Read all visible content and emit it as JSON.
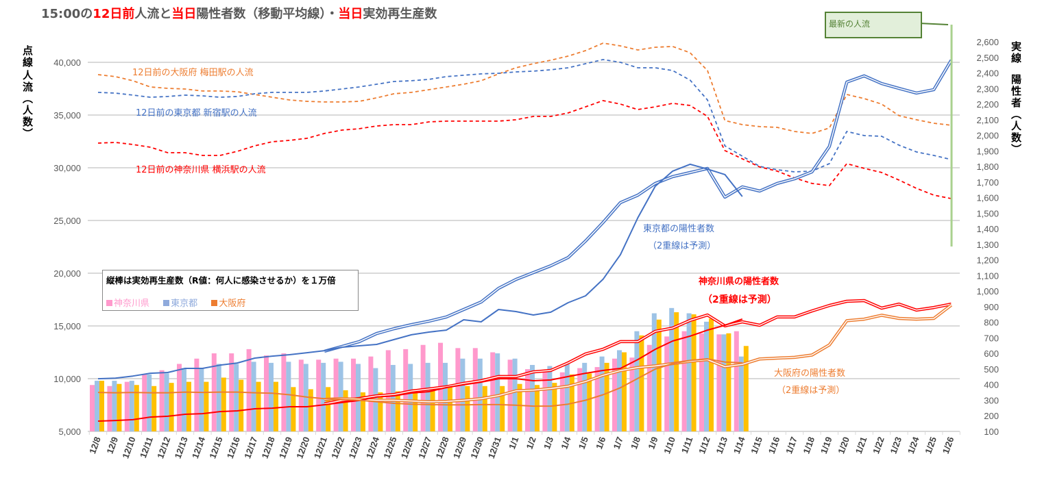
{
  "title": {
    "segments": [
      {
        "text": "15:00の",
        "red": false
      },
      {
        "text": "12日前",
        "red": true
      },
      {
        "text": "人流と",
        "red": false
      },
      {
        "text": "当日",
        "red": true
      },
      {
        "text": "陽性者数（移動平均線）・",
        "red": false
      },
      {
        "text": "当日",
        "red": true
      },
      {
        "text": "実効再生産数",
        "red": false
      }
    ]
  },
  "left_axis_title": {
    "line1": "点線",
    "line2": "人流（人数）"
  },
  "right_axis_title": {
    "line1": "実線",
    "line2": "陽性者（人数）"
  },
  "legend": {
    "title": "縦棒は実効再生産数（R値：何人に感染させるか）を１万倍",
    "items": [
      {
        "label": "神奈川県",
        "color": "#FF99CC"
      },
      {
        "label": "東京都",
        "color": "#9DC3E6"
      },
      {
        "label": "大阪府",
        "color": "#ED7D31"
      }
    ]
  },
  "latest_box": {
    "label": "最新の人流"
  },
  "annotations": {
    "umeda": "12日前の大阪府 梅田駅の人流",
    "shinjuku": "12日前の東京都 新宿駅の人流",
    "yokohama": "12日前の神奈川県 横浜駅の人流",
    "tokyo_pos": "東京都の陽性者数",
    "tokyo_note": "（2重線は予測）",
    "kanagawa_pos": "神奈川県の陽性者数",
    "kanagawa_note": "（2重線は予測）",
    "osaka_pos": "大阪府の陽性者数",
    "osaka_note": "（2重線は予測）"
  },
  "colors": {
    "tokyo": "#4472C4",
    "kanagawa": "#FF0000",
    "osaka": "#ED7D31",
    "bar_kanagawa": "#FF99CC",
    "bar_tokyo": "#9DC3E6",
    "bar_osaka": "#FFC000",
    "latest_line": "#A9D18E",
    "grid": "#D9D9D9"
  },
  "chart_data": {
    "type": "bar+line",
    "categories": [
      "12/8",
      "12/9",
      "12/10",
      "12/11",
      "12/12",
      "12/13",
      "12/14",
      "12/15",
      "12/16",
      "12/17",
      "12/18",
      "12/19",
      "12/20",
      "12/21",
      "12/22",
      "12/23",
      "12/24",
      "12/25",
      "12/26",
      "12/27",
      "12/28",
      "12/29",
      "12/30",
      "12/31",
      "1/1",
      "1/2",
      "1/3",
      "1/4",
      "1/5",
      "1/6",
      "1/7",
      "1/8",
      "1/9",
      "1/10",
      "1/11",
      "1/12",
      "1/13",
      "1/14",
      "1/15",
      "1/16",
      "1/17",
      "1/18",
      "1/19",
      "1/20",
      "1/21",
      "1/22",
      "1/23",
      "1/24",
      "1/25",
      "1/26"
    ],
    "left_axis": {
      "min": 5000,
      "max": 42500,
      "ticks": [
        "5,000",
        "10,000",
        "15,000",
        "20,000",
        "25,000",
        "30,000",
        "35,000",
        "40,000"
      ],
      "tick_values": [
        5000,
        10000,
        15000,
        20000,
        25000,
        30000,
        35000,
        40000
      ]
    },
    "right_axis": {
      "min": 100,
      "max": 2600,
      "ticks": [
        "100",
        "200",
        "300",
        "400",
        "500",
        "600",
        "700",
        "800",
        "900",
        "1,000",
        "1,100",
        "1,200",
        "1,300",
        "1,400",
        "1,500",
        "1,600",
        "1,700",
        "1,800",
        "1,900",
        "2,000",
        "2,100",
        "2,200",
        "2,300",
        "2,400",
        "2,500",
        "2,600"
      ],
      "tick_values": [
        100,
        200,
        300,
        400,
        500,
        600,
        700,
        800,
        900,
        1000,
        1100,
        1200,
        1300,
        1400,
        1500,
        1600,
        1700,
        1800,
        1900,
        2000,
        2100,
        2200,
        2300,
        2400,
        2500,
        2600
      ]
    },
    "bars_left_axis": [
      {
        "name": "神奈川県",
        "color_key": "bar_kanagawa",
        "values": [
          9400,
          9300,
          9700,
          10400,
          10800,
          11400,
          11900,
          12400,
          12400,
          12800,
          12200,
          12400,
          11800,
          11800,
          11900,
          11900,
          12100,
          12700,
          12800,
          13200,
          13400,
          12900,
          12900,
          12500,
          11800,
          10900,
          10800,
          10600,
          11000,
          11100,
          11900,
          12000,
          13200,
          14000,
          14500,
          14300,
          14200,
          14500
        ]
      },
      {
        "name": "東京都",
        "color_key": "bar_tokyo",
        "values": [
          9800,
          9800,
          9800,
          10400,
          10500,
          11000,
          11000,
          11400,
          11400,
          11600,
          11500,
          11600,
          11400,
          11500,
          11600,
          11400,
          11000,
          11300,
          11400,
          11500,
          11500,
          11900,
          11900,
          12400,
          11900,
          11300,
          11200,
          11400,
          11500,
          12100,
          12700,
          14500,
          16200,
          16700,
          16200,
          15400,
          14200,
          12100
        ]
      },
      {
        "name": "大阪府",
        "color_key": "bar_osaka",
        "values": [
          9800,
          9500,
          9400,
          9300,
          9600,
          9700,
          9700,
          10100,
          9900,
          9700,
          9700,
          9200,
          9000,
          9200,
          8900,
          8700,
          8700,
          8800,
          9000,
          9100,
          9300,
          9300,
          9300,
          9300,
          9500,
          9400,
          9600,
          10400,
          10500,
          11500,
          12500,
          14100,
          15600,
          16300,
          16100,
          15700,
          14300,
          13100
        ]
      }
    ],
    "mobility_left_axis": [
      {
        "name": "12日前の大阪府 梅田駅の人流",
        "color_key": "osaka",
        "values": [
          38830,
          38640,
          38250,
          37660,
          37530,
          37470,
          37280,
          37280,
          37210,
          36950,
          36690,
          36430,
          36300,
          36240,
          36240,
          36300,
          36630,
          37020,
          37150,
          37400,
          37660,
          37920,
          38250,
          38900,
          39480,
          39870,
          40200,
          40590,
          41110,
          41820,
          41560,
          41170,
          41430,
          41500,
          40910,
          39220,
          34480,
          34090,
          33900,
          33830,
          33440,
          33250,
          33770,
          36950,
          36560,
          36040,
          34940,
          34550,
          34220,
          34030
        ]
      },
      {
        "name": "12日前の東京都 新宿駅の人流",
        "color_key": "tokyo",
        "values": [
          37150,
          37080,
          36890,
          36690,
          36760,
          36890,
          36820,
          36690,
          36760,
          37020,
          37150,
          37150,
          37150,
          37280,
          37470,
          37660,
          37920,
          38180,
          38250,
          38380,
          38640,
          38770,
          38900,
          38960,
          39090,
          39160,
          39290,
          39480,
          39870,
          40260,
          40000,
          39480,
          39480,
          39220,
          38310,
          36430,
          32080,
          31100,
          30130,
          29810,
          29610,
          29680,
          30390,
          33440,
          33050,
          32990,
          32140,
          31500,
          31170,
          30780
        ]
      },
      {
        "name": "12日前の神奈川県 横浜駅の人流",
        "color_key": "kanagawa",
        "values": [
          32340,
          32400,
          32210,
          31950,
          31430,
          31430,
          31170,
          31170,
          31560,
          32080,
          32470,
          32600,
          32790,
          33250,
          33570,
          33700,
          33960,
          34090,
          34090,
          34350,
          34420,
          34420,
          34420,
          34420,
          34550,
          34870,
          34870,
          35200,
          35780,
          36370,
          36040,
          35520,
          35780,
          36110,
          35910,
          34870,
          31630,
          30850,
          30070,
          29680,
          29030,
          28510,
          28310,
          30390,
          29940,
          29550,
          28830,
          28050,
          27400,
          27080
        ]
      }
    ],
    "positives_actual_right_axis": [
      {
        "name": "東京都",
        "color_key": "tokyo",
        "start_index": 0,
        "values": [
          438,
          442,
          455,
          473,
          478,
          504,
          504,
          525,
          539,
          570,
          583,
          592,
          605,
          618,
          640,
          649,
          658,
          689,
          720,
          737,
          750,
          816,
          803,
          882,
          869,
          847,
          865,
          926,
          970,
          1076,
          1234,
          1471,
          1673,
          1770,
          1814,
          1783,
          1748,
          1607
        ]
      },
      {
        "name": "神奈川県",
        "color_key": "kanagawa",
        "start_index": 0,
        "values": [
          166,
          170,
          175,
          192,
          197,
          210,
          214,
          227,
          232,
          245,
          249,
          258,
          258,
          271,
          285,
          298,
          320,
          328,
          346,
          355,
          381,
          399,
          416,
          438,
          438,
          425,
          430,
          452,
          473,
          491,
          504,
          561,
          627,
          680,
          711,
          750,
          781,
          821
        ]
      },
      {
        "name": "大阪府",
        "color_key": "osaka",
        "start_index": 0,
        "values": [
          350,
          348,
          350,
          348,
          348,
          352,
          350,
          352,
          352,
          348,
          345,
          335,
          320,
          310,
          306,
          300,
          290,
          280,
          275,
          272,
          270,
          270,
          272,
          272,
          268,
          262,
          262,
          275,
          300,
          335,
          380,
          440,
          500,
          535,
          555,
          565,
          545,
          540
        ]
      }
    ],
    "positives_forecast_right_axis": [
      {
        "name": "東京都（予測）",
        "color_key": "tokyo",
        "start_index": 13,
        "values": [
          614,
          645,
          676,
          728,
          759,
          785,
          807,
          834,
          882,
          930,
          1018,
          1075,
          1119,
          1163,
          1216,
          1322,
          1440,
          1568,
          1616,
          1691,
          1735,
          1761,
          1787,
          1603,
          1669,
          1642,
          1691,
          1721,
          1765,
          1928,
          2341,
          2381,
          2332,
          2301,
          2271,
          2293,
          2482
        ]
      },
      {
        "name": "神奈川県（予測）",
        "color_key": "kanagawa",
        "start_index": 13,
        "values": [
          276,
          298,
          311,
          328,
          337,
          359,
          372,
          386,
          408,
          425,
          452,
          452,
          482,
          491,
          540,
          597,
          627,
          676,
          676,
          742,
          763,
          812,
          847,
          777,
          803,
          781,
          834,
          834,
          873,
          908,
          935,
          939,
          891,
          917,
          878,
          895,
          917
        ]
      },
      {
        "name": "大阪府（予測）",
        "color_key": "osaka",
        "start_index": 13,
        "values": [
          305,
          310,
          305,
          300,
          300,
          295,
          290,
          292,
          300,
          310,
          330,
          360,
          365,
          375,
          390,
          420,
          460,
          490,
          510,
          520,
          535,
          550,
          560,
          515,
          530,
          565,
          570,
          575,
          590,
          655,
          810,
          820,
          845,
          825,
          820,
          825,
          910
        ]
      }
    ],
    "grid": true,
    "legend_placement": "left-middle"
  }
}
